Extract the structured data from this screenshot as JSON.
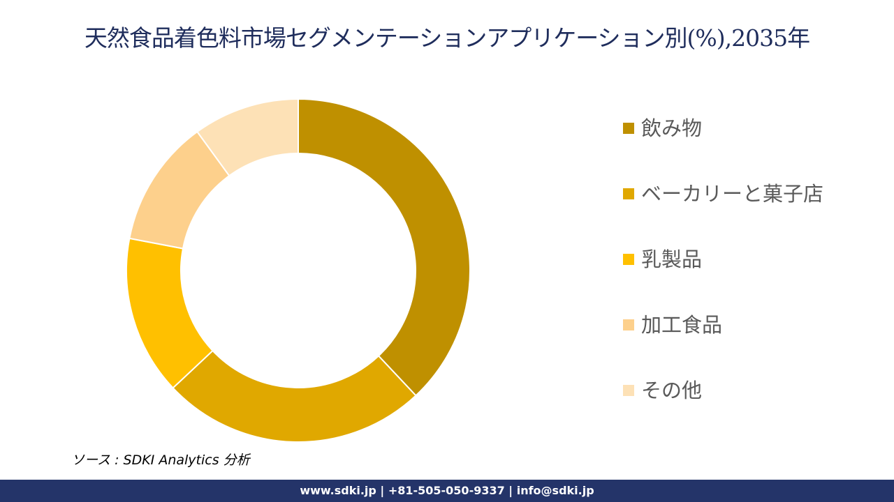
{
  "chart_data": {
    "type": "donut",
    "title": "天然食品着色料市場セグメンテーションアプリケーション別(%),2035年",
    "categories": [
      "飲み物",
      "ベーカリーと菓子店",
      "乳製品",
      "加工食品",
      "その他"
    ],
    "values": [
      38,
      25,
      15,
      12,
      10
    ],
    "colors": [
      "#bf9000",
      "#e0a800",
      "#ffc000",
      "#fdd08c",
      "#fde1b6"
    ],
    "legend": "right"
  },
  "source": "ソース : SDKI Analytics 分析",
  "footer": "www.sdki.jp | +81-505-050-9337 | info@sdki.jp"
}
